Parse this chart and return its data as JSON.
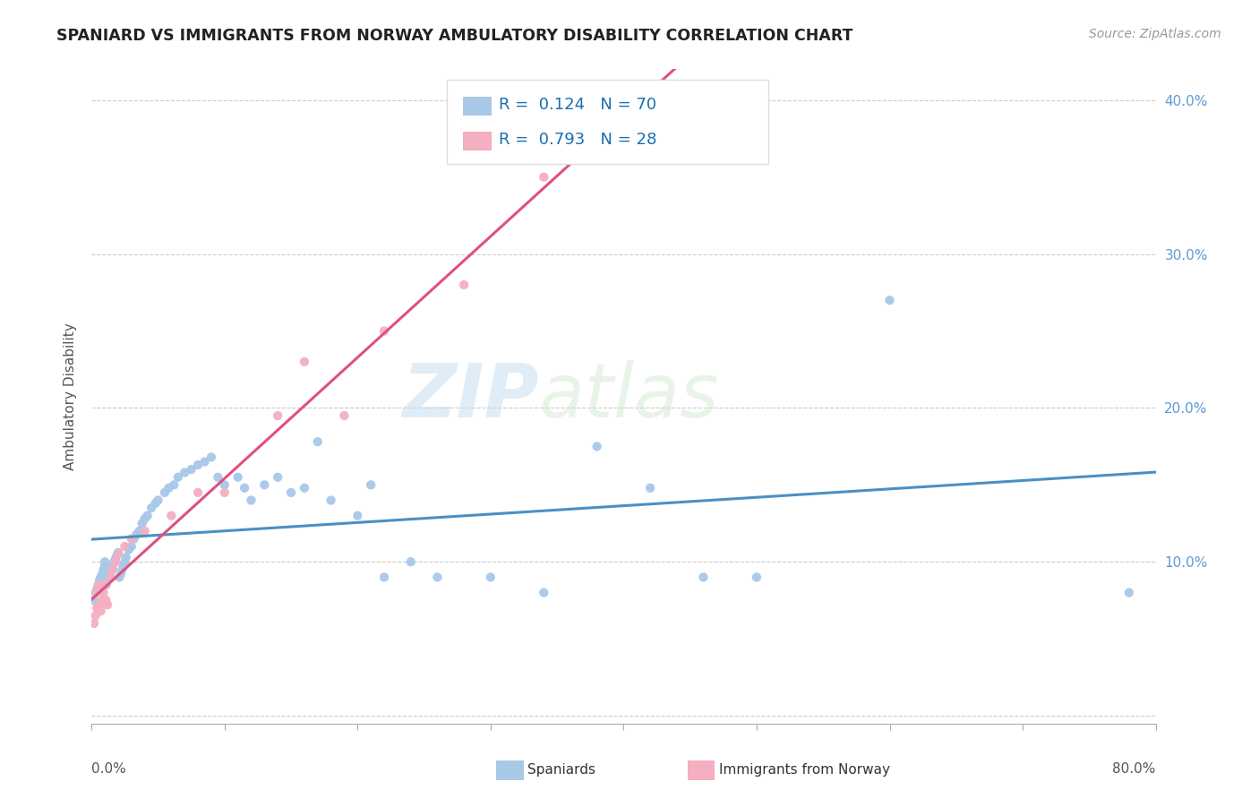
{
  "title": "SPANIARD VS IMMIGRANTS FROM NORWAY AMBULATORY DISABILITY CORRELATION CHART",
  "source": "Source: ZipAtlas.com",
  "ylabel": "Ambulatory Disability",
  "legend_label1": "Spaniards",
  "legend_label2": "Immigrants from Norway",
  "r1": 0.124,
  "n1": 70,
  "r2": 0.793,
  "n2": 28,
  "color1": "#a8c8e8",
  "color2": "#f4afc0",
  "line1_color": "#4a90c4",
  "line2_color": "#e05080",
  "watermark_zip": "ZIP",
  "watermark_atlas": "atlas",
  "xlim": [
    0.0,
    0.8
  ],
  "ylim": [
    -0.005,
    0.42
  ],
  "ytick_values": [
    0.0,
    0.1,
    0.2,
    0.3,
    0.4
  ],
  "spaniards_x": [
    0.002,
    0.003,
    0.004,
    0.005,
    0.006,
    0.007,
    0.008,
    0.009,
    0.01,
    0.01,
    0.011,
    0.012,
    0.013,
    0.014,
    0.015,
    0.016,
    0.017,
    0.018,
    0.019,
    0.02,
    0.021,
    0.022,
    0.023,
    0.024,
    0.025,
    0.026,
    0.028,
    0.03,
    0.032,
    0.034,
    0.036,
    0.038,
    0.04,
    0.042,
    0.045,
    0.048,
    0.05,
    0.055,
    0.058,
    0.062,
    0.065,
    0.07,
    0.075,
    0.08,
    0.085,
    0.09,
    0.095,
    0.1,
    0.11,
    0.115,
    0.12,
    0.13,
    0.14,
    0.15,
    0.16,
    0.17,
    0.18,
    0.2,
    0.21,
    0.22,
    0.24,
    0.26,
    0.3,
    0.34,
    0.38,
    0.42,
    0.46,
    0.5,
    0.6,
    0.78
  ],
  "spaniards_y": [
    0.075,
    0.08,
    0.082,
    0.085,
    0.088,
    0.09,
    0.092,
    0.095,
    0.098,
    0.1,
    0.085,
    0.088,
    0.09,
    0.092,
    0.095,
    0.098,
    0.1,
    0.102,
    0.104,
    0.106,
    0.09,
    0.092,
    0.095,
    0.098,
    0.1,
    0.103,
    0.108,
    0.11,
    0.115,
    0.118,
    0.12,
    0.125,
    0.128,
    0.13,
    0.135,
    0.138,
    0.14,
    0.145,
    0.148,
    0.15,
    0.155,
    0.158,
    0.16,
    0.163,
    0.165,
    0.168,
    0.155,
    0.15,
    0.155,
    0.148,
    0.14,
    0.15,
    0.155,
    0.145,
    0.148,
    0.178,
    0.14,
    0.13,
    0.15,
    0.09,
    0.1,
    0.09,
    0.09,
    0.08,
    0.175,
    0.148,
    0.09,
    0.09,
    0.27,
    0.08
  ],
  "norway_x": [
    0.002,
    0.003,
    0.004,
    0.004,
    0.005,
    0.006,
    0.007,
    0.008,
    0.009,
    0.01,
    0.011,
    0.012,
    0.014,
    0.016,
    0.018,
    0.02,
    0.025,
    0.03,
    0.04,
    0.06,
    0.08,
    0.1,
    0.14,
    0.16,
    0.19,
    0.22,
    0.28,
    0.34
  ],
  "norway_y": [
    0.06,
    0.065,
    0.07,
    0.08,
    0.085,
    0.072,
    0.068,
    0.075,
    0.08,
    0.085,
    0.075,
    0.072,
    0.09,
    0.095,
    0.1,
    0.105,
    0.11,
    0.115,
    0.12,
    0.13,
    0.145,
    0.145,
    0.195,
    0.23,
    0.195,
    0.25,
    0.28,
    0.35
  ]
}
